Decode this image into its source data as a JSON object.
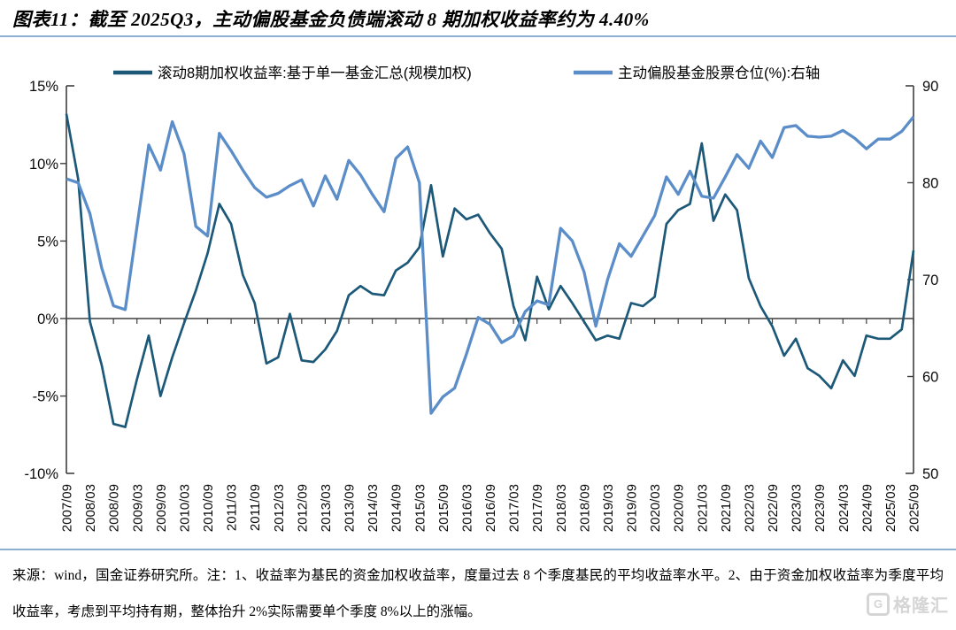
{
  "page": {
    "title": "图表11：截至 2025Q3，主动偏股基金负债端滚动 8 期加权收益率约为 4.40%",
    "footer_note": "来源：wind，国金证券研究所。注：1、收益率为基民的资金加权收益率，度量过去 8 个季度基民的平均收益率水平。2、由于资金加权收益率为季度平均收益率，考虑到平均持有期，整体抬升 2%实际需要单个季度 8%以上的涨幅。",
    "watermark_icon": "G",
    "watermark_text": "格隆汇"
  },
  "colors": {
    "dark_line": "#1c5878",
    "light_line": "#5b8dc8",
    "axis": "#3f3f3f",
    "rule": "#8cafd2"
  },
  "chart_data": {
    "type": "line",
    "title": "截至 2025Q3，主动偏股基金负债端滚动 8 期加权收益率约为 4.40%",
    "x_start": "2007/09",
    "x_end": "2025/09",
    "x_step_months": 3,
    "x_tick_labels": [
      "2007/09",
      "2008/03",
      "2008/09",
      "2009/03",
      "2009/09",
      "2010/03",
      "2010/09",
      "2011/03",
      "2011/09",
      "2012/03",
      "2012/09",
      "2013/03",
      "2013/09",
      "2014/03",
      "2014/09",
      "2015/03",
      "2015/09",
      "2016/03",
      "2016/09",
      "2017/03",
      "2017/09",
      "2018/03",
      "2018/09",
      "2019/03",
      "2019/09",
      "2020/03",
      "2020/09",
      "2021/03",
      "2021/09",
      "2022/03",
      "2022/09",
      "2023/03",
      "2023/09",
      "2024/03",
      "2024/09",
      "2025/03",
      "2025/09"
    ],
    "left_axis": {
      "ticks": [
        "15%",
        "10%",
        "5%",
        "0%",
        "-5%",
        "-10%"
      ],
      "min": -10,
      "max": 15,
      "side": "left"
    },
    "right_axis": {
      "ticks": [
        "90",
        "80",
        "70",
        "60",
        "50"
      ],
      "min": 50,
      "max": 90,
      "side": "right"
    },
    "grid": false,
    "legend_position": "top",
    "series": [
      {
        "name": "滚动8期加权收益率:基于单一基金汇总(规模加权)",
        "axis": "left",
        "color": "#1c5878",
        "values": [
          13.2,
          9.0,
          -0.2,
          -3.0,
          -6.8,
          -7.0,
          -3.9,
          -1.1,
          -5.0,
          -2.5,
          -0.3,
          1.8,
          4.2,
          7.4,
          6.1,
          2.8,
          1.0,
          -2.9,
          -2.5,
          0.3,
          -2.7,
          -2.8,
          -2.0,
          -0.8,
          1.5,
          2.1,
          1.6,
          1.5,
          3.1,
          3.6,
          4.6,
          8.6,
          4.0,
          7.1,
          6.4,
          6.7,
          5.5,
          4.5,
          0.8,
          -1.4,
          2.7,
          0.6,
          2.1,
          1.0,
          -0.2,
          -1.4,
          -1.1,
          -1.3,
          1.0,
          0.8,
          1.4,
          6.1,
          7.0,
          7.4,
          11.3,
          6.3,
          8.0,
          7.0,
          2.6,
          0.8,
          -0.5,
          -2.4,
          -1.3,
          -3.2,
          -3.7,
          -4.5,
          -2.7,
          -3.7,
          -1.1,
          -1.3,
          -1.3,
          -0.7,
          4.4
        ]
      },
      {
        "name": "主动偏股基金股票仓位(%):右轴",
        "axis": "right",
        "color": "#5b8dc8",
        "values": [
          80.4,
          80.0,
          76.8,
          71.2,
          67.3,
          66.9,
          75.5,
          83.9,
          81.3,
          86.3,
          83.0,
          75.5,
          74.5,
          85.1,
          83.3,
          81.3,
          79.5,
          78.5,
          78.9,
          79.7,
          80.3,
          77.6,
          80.7,
          78.3,
          82.3,
          80.8,
          78.8,
          77.0,
          82.5,
          83.7,
          80.0,
          56.2,
          57.9,
          58.8,
          62.3,
          66.1,
          65.4,
          63.5,
          64.2,
          66.7,
          67.8,
          67.4,
          75.3,
          74.0,
          70.8,
          65.2,
          70.0,
          73.7,
          72.4,
          74.5,
          76.6,
          80.6,
          78.8,
          81.2,
          78.6,
          78.4,
          80.6,
          82.9,
          81.5,
          84.3,
          82.6,
          85.7,
          85.9,
          84.8,
          84.7,
          84.8,
          85.4,
          84.6,
          83.5,
          84.5,
          84.5,
          85.3,
          86.8
        ]
      }
    ]
  }
}
